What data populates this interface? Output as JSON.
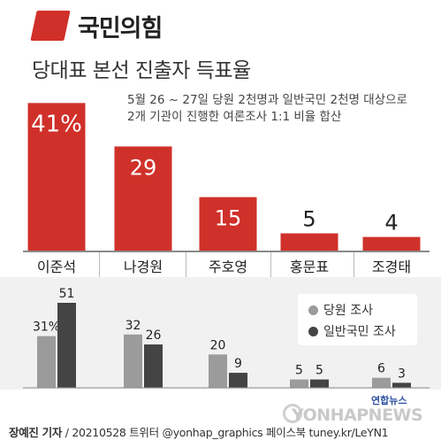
{
  "header": {
    "party_name": "국민의힘",
    "title": "당대표 본선 진출자 득표율",
    "note_line1": "5월 26 ~ 27일 당원 2천명과 일반국민 2천명 대상으로",
    "note_line2": "2개 기관이 진행한 여론조사 1:1 비율 합산"
  },
  "colors": {
    "accent": "#d0302a",
    "party_member": "#9b9b9b",
    "general_public": "#444444"
  },
  "chart_data": [
    {
      "type": "bar",
      "categories": [
        "이준석",
        "나경원",
        "주호영",
        "홍문표",
        "조경태"
      ],
      "values": [
        41,
        29,
        15,
        5,
        4
      ],
      "value_labels": [
        "41%",
        "29",
        "15",
        "5",
        "4"
      ],
      "ylim": [
        0,
        45
      ]
    },
    {
      "type": "bar",
      "categories": [
        "이준석",
        "나경원",
        "주호영",
        "홍문표",
        "조경태"
      ],
      "series": [
        {
          "name": "당원 조사",
          "values": [
            31,
            32,
            20,
            5,
            6
          ],
          "labels": [
            "31%",
            "32",
            "20",
            "5",
            "6"
          ]
        },
        {
          "name": "일반국민 조사",
          "values": [
            51,
            26,
            9,
            5,
            3
          ],
          "labels": [
            "51",
            "26",
            "9",
            "5",
            "3"
          ]
        }
      ],
      "ylim": [
        0,
        51
      ]
    }
  ],
  "legend": {
    "item1": "당원 조사",
    "item2": "일반국민 조사"
  },
  "footer": {
    "reporter": "장예진 기자",
    "credit": "/ 20210528 트위터 @yonhap_graphics  페이스북 tuney.kr/LeYN1",
    "agency": "연합뉴스",
    "watermark": "YONHAPNEWS"
  }
}
